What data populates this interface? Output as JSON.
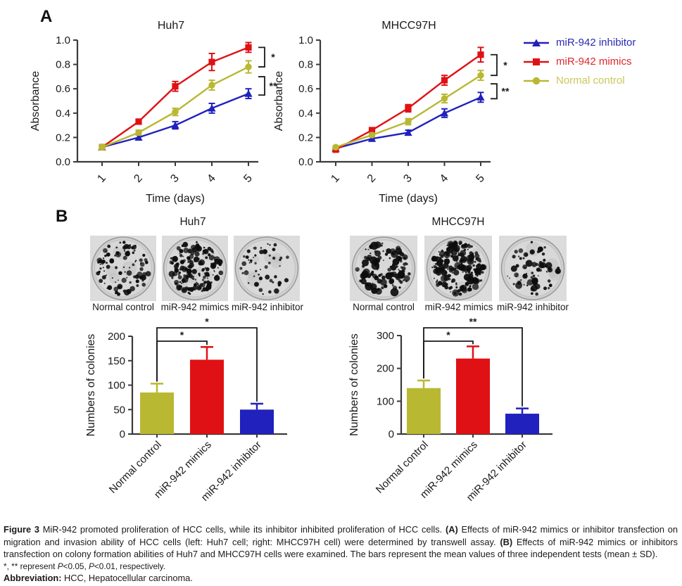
{
  "colors": {
    "mimics": "#e01114",
    "inhibitor": "#2121bd",
    "control": "#b9b832",
    "control_text": "#c9c75a",
    "axis": "#3a3a3a",
    "bracket": "#1a1a1a",
    "text": "#1a1a1a"
  },
  "panelA": {
    "label": "A",
    "legend": [
      {
        "label": "miR-942 inhibitor",
        "marker": "triangle",
        "color_key": "inhibitor",
        "text_color": "#2a2ab5"
      },
      {
        "label": "miR-942 mimics",
        "marker": "square",
        "color_key": "mimics",
        "text_color": "#e0262b"
      },
      {
        "label": "Normal control",
        "marker": "circle",
        "color_key": "control",
        "text_color": "#c9c75a"
      }
    ]
  },
  "panelB": {
    "label": "B",
    "groups": [
      {
        "title": "Huh7",
        "dish_labels": [
          "Normal control",
          "miR-942 mimics",
          "miR-942 inhibitor"
        ]
      },
      {
        "title": "MHCC97H",
        "dish_labels": [
          "Normal control",
          "miR-942 mimics",
          "miR-942 inhibitor"
        ]
      }
    ]
  },
  "chart_data": [
    {
      "type": "line",
      "title": "Huh7",
      "xlabel": "Time (days)",
      "ylabel": "Absorbance",
      "x": [
        1,
        2,
        3,
        4,
        5
      ],
      "ylim": [
        0,
        1.0
      ],
      "yticks": [
        0.0,
        0.2,
        0.4,
        0.6,
        0.8,
        1.0
      ],
      "grid": false,
      "series": [
        {
          "name": "miR-942 inhibitor",
          "marker": "triangle",
          "color_key": "inhibitor",
          "values": [
            0.12,
            0.2,
            0.3,
            0.44,
            0.56
          ],
          "errors": [
            0.01,
            0.02,
            0.03,
            0.04,
            0.04
          ]
        },
        {
          "name": "miR-942 mimics",
          "marker": "square",
          "color_key": "mimics",
          "values": [
            0.12,
            0.33,
            0.62,
            0.82,
            0.94
          ],
          "errors": [
            0.02,
            0.02,
            0.04,
            0.07,
            0.04
          ]
        },
        {
          "name": "Normal control",
          "marker": "circle",
          "color_key": "control",
          "values": [
            0.12,
            0.24,
            0.41,
            0.63,
            0.78
          ],
          "errors": [
            0.02,
            0.02,
            0.03,
            0.04,
            0.05
          ]
        }
      ],
      "significance": [
        {
          "between": [
            "miR-942 mimics",
            "Normal control"
          ],
          "label": "*"
        },
        {
          "between": [
            "Normal control",
            "miR-942 inhibitor"
          ],
          "label": "**"
        }
      ]
    },
    {
      "type": "line",
      "title": "MHCC97H",
      "xlabel": "Time (days)",
      "ylabel": "Absorbance",
      "x": [
        1,
        2,
        3,
        4,
        5
      ],
      "ylim": [
        0,
        1.0
      ],
      "yticks": [
        0.0,
        0.2,
        0.4,
        0.6,
        0.8,
        1.0
      ],
      "grid": false,
      "series": [
        {
          "name": "miR-942 inhibitor",
          "marker": "triangle",
          "color_key": "inhibitor",
          "values": [
            0.11,
            0.19,
            0.24,
            0.4,
            0.53
          ],
          "errors": [
            0.01,
            0.015,
            0.02,
            0.035,
            0.04
          ]
        },
        {
          "name": "miR-942 mimics",
          "marker": "square",
          "color_key": "mimics",
          "values": [
            0.1,
            0.26,
            0.44,
            0.67,
            0.88
          ],
          "errors": [
            0.015,
            0.02,
            0.03,
            0.04,
            0.06
          ]
        },
        {
          "name": "Normal control",
          "marker": "circle",
          "color_key": "control",
          "values": [
            0.12,
            0.22,
            0.33,
            0.52,
            0.71
          ],
          "errors": [
            0.01,
            0.015,
            0.025,
            0.035,
            0.04
          ]
        }
      ],
      "significance": [
        {
          "between": [
            "miR-942 mimics",
            "Normal control"
          ],
          "label": "*"
        },
        {
          "between": [
            "Normal control",
            "miR-942 inhibitor"
          ],
          "label": "**"
        }
      ]
    },
    {
      "type": "bar",
      "cell_line": "Huh7",
      "ylabel": "Numbers of colonies",
      "categories": [
        "Normal control",
        "miR-942 mimics",
        "miR-942 inhibitor"
      ],
      "values": [
        85,
        152,
        50
      ],
      "errors": [
        18,
        26,
        12
      ],
      "colors_keys": [
        "control",
        "mimics",
        "inhibitor"
      ],
      "ylim": [
        0,
        200
      ],
      "yticks": [
        0,
        50,
        100,
        150,
        200
      ],
      "significance": [
        {
          "between": [
            0,
            1
          ],
          "label": "*"
        },
        {
          "between": [
            0,
            2
          ],
          "label": "*"
        }
      ]
    },
    {
      "type": "bar",
      "cell_line": "MHCC97H",
      "ylabel": "Numbers of colonies",
      "categories": [
        "Normal control",
        "miR-942 mimics",
        "miR-942 inhibitor"
      ],
      "values": [
        140,
        230,
        62
      ],
      "errors": [
        23,
        37,
        16
      ],
      "colors_keys": [
        "control",
        "mimics",
        "inhibitor"
      ],
      "ylim": [
        0,
        300
      ],
      "yticks": [
        0,
        100,
        200,
        300
      ],
      "significance": [
        {
          "between": [
            0,
            1
          ],
          "label": "*"
        },
        {
          "between": [
            0,
            2
          ],
          "label": "**"
        }
      ]
    }
  ],
  "caption": {
    "figure_label": "Figure 3",
    "intro": " MiR-942 promoted proliferation of HCC cells, while its inhibitor inhibited proliferation of HCC cells. ",
    "a_label": "(A)",
    "a_text": " Effects of miR-942 mimics or inhibitor transfection on migration and invasion ability of HCC cells (left: Huh7 cell; right: MHCC97H cell) were determined by transwell assay. ",
    "b_label": "(B)",
    "b_text": " Effects of miR-942 mimics or inhibitors transfection on colony formation abilities of Huh7 and MHCC97H cells were examined. The bars represent the mean values of three independent tests (mean ± SD).",
    "stats": {
      "prefix": "*, ** represent ",
      "p1": "P",
      "v1": "<0.05, ",
      "p2": "P",
      "v2": "<0.01, respectively."
    },
    "abbrev_label": "Abbreviation:",
    "abbrev_text": " HCC, Hepatocellular carcinoma."
  }
}
